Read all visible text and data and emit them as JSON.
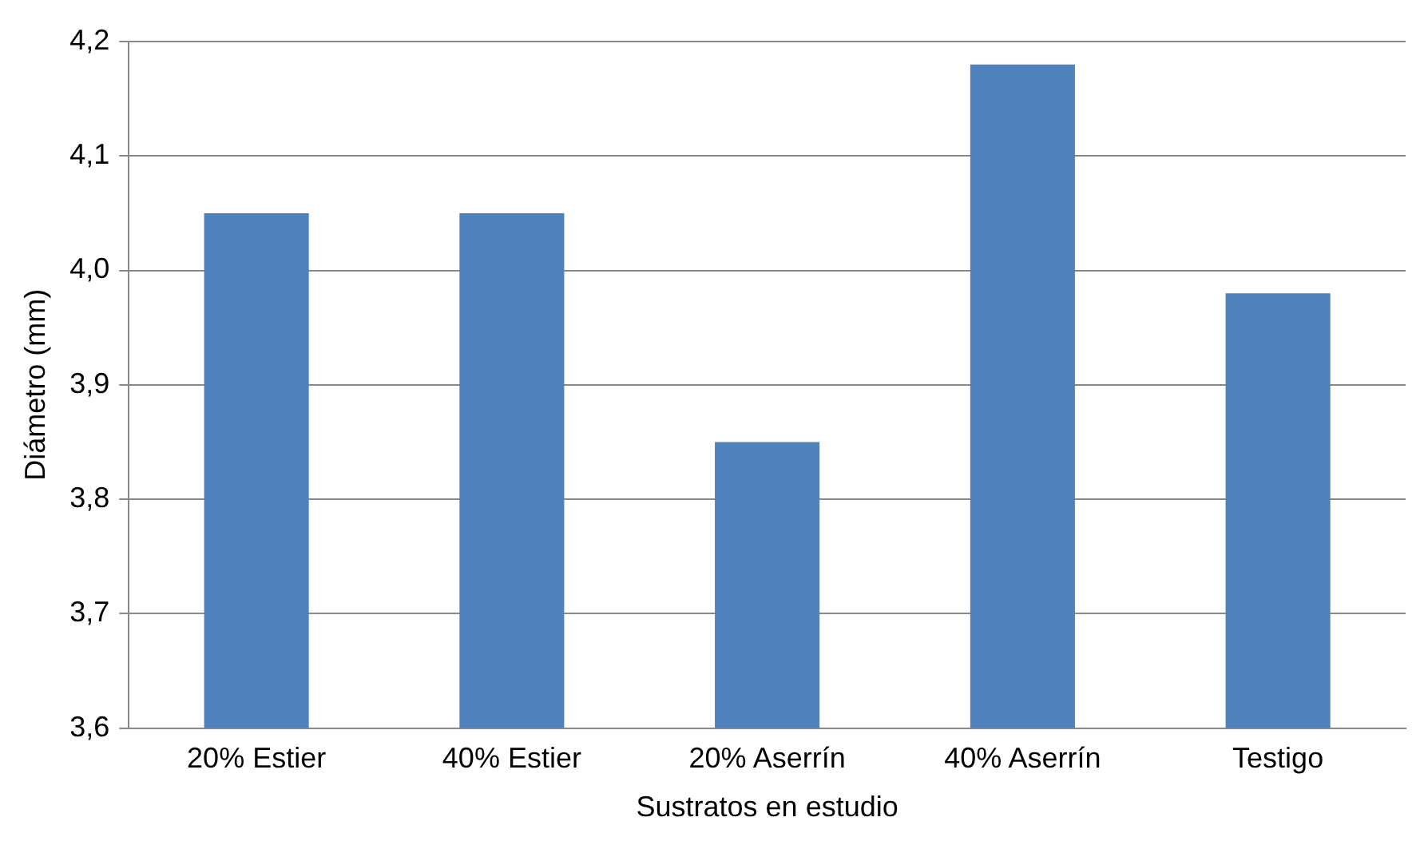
{
  "chart_data": {
    "type": "bar",
    "xlabel": "Sustratos en estudio",
    "ylabel": "Diámetro (mm)",
    "categories": [
      "20% Estier",
      "40% Estier",
      "20% Aserrín",
      "40% Aserrín",
      "Testigo"
    ],
    "values": [
      4.05,
      4.05,
      3.85,
      4.18,
      3.98
    ],
    "color": "#4f81bd",
    "ylim": [
      3.6,
      4.2
    ],
    "yticks": [
      {
        "value": 3.6,
        "label": "3,6"
      },
      {
        "value": 3.7,
        "label": "3,7"
      },
      {
        "value": 3.8,
        "label": "3,8"
      },
      {
        "value": 3.9,
        "label": "3,9"
      },
      {
        "value": 4.0,
        "label": "4,0"
      },
      {
        "value": 4.1,
        "label": "4,1"
      },
      {
        "value": 4.2,
        "label": "4,2"
      }
    ],
    "grid": "y",
    "legend": false
  }
}
